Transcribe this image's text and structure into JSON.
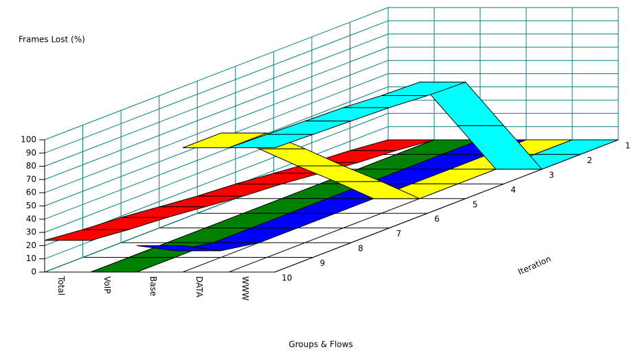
{
  "chart_data": {
    "type": "ribbon3d",
    "y_label": "Frames Lost (%)",
    "x_label": "Groups & Flows",
    "z_label": "Iteration",
    "categories": [
      "Total",
      "VoIP",
      "Base",
      "DATA",
      "WWW"
    ],
    "x": [
      "1",
      "2",
      "3",
      "4",
      "5",
      "6",
      "7",
      "8",
      "9",
      "10"
    ],
    "ylim": [
      0,
      100
    ],
    "yticks": [
      0,
      10,
      20,
      30,
      40,
      50,
      60,
      70,
      80,
      90,
      100
    ],
    "grid": true,
    "series": [
      {
        "name": "Total",
        "color": "#ff0000",
        "values": [
          0,
          3,
          5,
          8,
          11,
          13,
          16,
          19,
          21,
          24
        ]
      },
      {
        "name": "VoIP",
        "color": "#008000",
        "values": [
          0,
          0,
          0,
          0,
          0,
          0,
          0,
          0,
          0,
          0
        ]
      },
      {
        "name": "Base",
        "color": "#0000ff",
        "values": [
          0,
          0,
          0,
          0,
          0,
          0,
          0,
          0,
          5,
          20
        ]
      },
      {
        "name": "DATA",
        "color": "#ffff00",
        "values": [
          0,
          0,
          0,
          0,
          0,
          24,
          47,
          71,
          94,
          94
        ]
      },
      {
        "name": "WWW",
        "color": "#00ffff",
        "values": [
          0,
          0,
          0,
          44,
          88,
          89,
          91,
          92,
          93,
          94
        ]
      }
    ]
  }
}
